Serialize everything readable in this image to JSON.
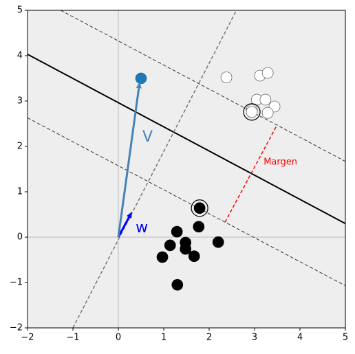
{
  "chart_data": {
    "type": "scatter",
    "xlim": [
      -2,
      5
    ],
    "ylim": [
      -2,
      5
    ],
    "xticks": [
      {
        "value": -2,
        "label": "−2"
      },
      {
        "value": -1,
        "label": "−1"
      },
      0,
      1,
      2,
      3,
      4,
      5
    ],
    "yticks": [
      {
        "value": -2,
        "label": "−2"
      },
      {
        "value": -1,
        "label": "−1"
      },
      0,
      1,
      2,
      3,
      4,
      5
    ],
    "background": "#eeeeee",
    "series": [
      {
        "color": "#ffffff",
        "edgecolor": "#555555",
        "x": [
          2.38,
          3.12,
          3.29,
          3.05,
          3.24,
          2.94,
          3.44,
          3.29,
          2.94
        ],
        "y": [
          3.52,
          3.56,
          3.62,
          3.03,
          3.03,
          2.8,
          2.88,
          2.74,
          2.76
        ]
      },
      {
        "color": "#000000",
        "edgecolor": "#000000",
        "x": [
          1.29,
          1.77,
          1.14,
          1.48,
          1.48,
          0.97,
          1.67,
          2.2,
          1.3,
          1.79
        ],
        "y": [
          0.12,
          0.23,
          -0.18,
          -0.12,
          -0.26,
          -0.44,
          -0.42,
          -0.11,
          -1.05,
          0.64
        ]
      },
      {
        "color": "#1f77b4",
        "edgecolor": "#1f77b4",
        "x": [
          0.5
        ],
        "y": [
          3.5
        ]
      }
    ],
    "support_vectors": {
      "x": [
        2.94,
        1.79
      ],
      "y": [
        2.76,
        0.64
      ]
    },
    "lines": [
      {
        "x": [
          -2,
          5
        ],
        "y": [
          4.03,
          0.3
        ],
        "color": "#000000",
        "dashed": false,
        "width": 2
      },
      {
        "x": [
          -1.27,
          5
        ],
        "y": [
          5,
          1.67
        ],
        "color": "#333333",
        "dashed": true,
        "width": 1
      },
      {
        "x": [
          -2,
          5
        ],
        "y": [
          2.63,
          -1.07
        ],
        "color": "#333333",
        "dashed": true,
        "width": 1
      },
      {
        "x": [
          -1,
          2.6
        ],
        "y": [
          -2,
          5
        ],
        "color": "#777777",
        "dashed": true,
        "width": 1.5
      },
      {
        "x": [
          2.35,
          3.5
        ],
        "y": [
          0.33,
          2.48
        ],
        "color": "#ff0000",
        "dashed": true,
        "width": 1.5
      }
    ],
    "vectors": [
      {
        "x": [
          0,
          0.3
        ],
        "y": [
          0,
          0.56
        ],
        "color": "#0000ff"
      },
      {
        "x": [
          0,
          0.47
        ],
        "y": [
          0,
          3.42
        ],
        "color": "#4682b4"
      }
    ],
    "annotations": [
      {
        "text": "w",
        "x": 0.38,
        "y": 0.2,
        "color": "#0000ff",
        "size": 22
      },
      {
        "text": "V",
        "x": 0.53,
        "y": 2.2,
        "color": "#4682b4",
        "size": 22
      },
      {
        "text": "Margen",
        "x": 3.2,
        "y": 1.65,
        "color": "#ff0000",
        "size": 13
      }
    ]
  }
}
